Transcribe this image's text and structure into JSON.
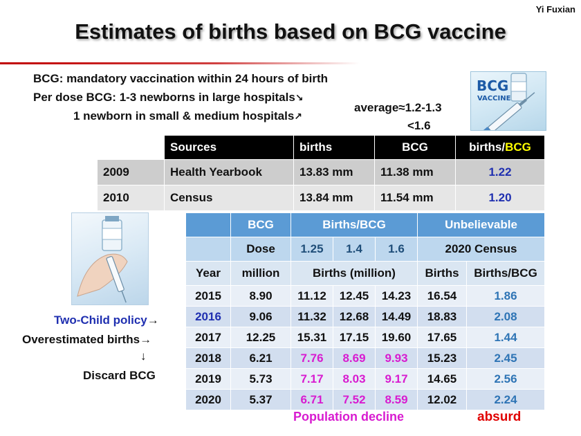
{
  "author": "Yi Fuxian",
  "title": "Estimates of births based on BCG vaccine",
  "intro": {
    "line1": "BCG: mandatory vaccination within 24 hours of birth",
    "line2": "Per dose BCG: 1-3  newborns in large hospitals",
    "line3": "1 newborn in small & medium hospitals",
    "arrow_down": "↘",
    "arrow_up": "↗",
    "average": "average≈1.2-1.3",
    "lt": "<1.6"
  },
  "vaccine_image": {
    "line1": "BCG",
    "line2": "VACCINE"
  },
  "table1": {
    "headers": [
      "Sources",
      "births",
      "BCG",
      "births/",
      "BCG"
    ],
    "rows": [
      [
        "2009",
        "Health Yearbook",
        "13.83 mm",
        "11.38 mm",
        "1.22"
      ],
      [
        "2010",
        "Census",
        "13.84 mm",
        "11.54 mm",
        "1.20"
      ]
    ]
  },
  "table2": {
    "header1": [
      "BCG",
      "Births/BCG",
      "Unbelievable"
    ],
    "header2": [
      "Dose",
      "1.25",
      "1.4",
      "1.6",
      "2020 Census"
    ],
    "header3": [
      "Year",
      "million",
      "Births (million)",
      "Births",
      "Births/BCG"
    ],
    "rows": [
      [
        "2015",
        "8.90",
        "11.12",
        "12.45",
        "14.23",
        "16.54",
        "1.86"
      ],
      [
        "2016",
        "9.06",
        "11.32",
        "12.68",
        "14.49",
        "18.83",
        "2.08"
      ],
      [
        "2017",
        "12.25",
        "15.31",
        "17.15",
        "19.60",
        "17.65",
        "1.44"
      ],
      [
        "2018",
        "6.21",
        "7.76",
        "8.69",
        "9.93",
        "15.23",
        "2.45"
      ],
      [
        "2019",
        "5.73",
        "7.17",
        "8.03",
        "9.17",
        "14.65",
        "2.56"
      ],
      [
        "2020",
        "5.37",
        "6.71",
        "7.52",
        "8.59",
        "12.02",
        "2.24"
      ]
    ]
  },
  "notes": {
    "two_child": "Two-Child policy",
    "overestimated": "Overestimated births",
    "arrow_right": "→",
    "arrow_down": "↓",
    "discard": "Discard BCG",
    "population_decline": "Population decline",
    "absurd": "absurd"
  },
  "colors": {
    "title_rule": "#c00000",
    "header_blue": "#5b9bd5",
    "magenta": "#d81bd0",
    "absurd_red": "#e00000",
    "yellow": "#ffff00"
  }
}
